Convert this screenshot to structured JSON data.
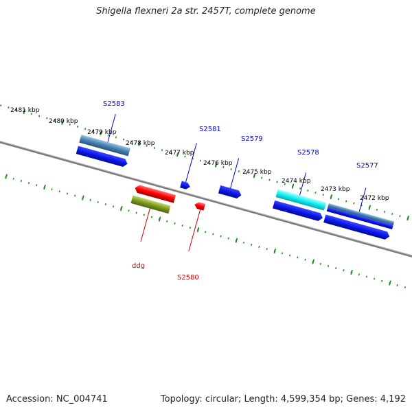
{
  "title": "Shigella flexneri 2a str. 2457T, complete genome",
  "footer": {
    "accession": "Accession: NC_004741",
    "stats": "Topology: circular; Length: 4,599,354 bp; Genes: 4,192"
  },
  "colors": {
    "backbone": "#7a7a7a",
    "ruler": "#1a8a1a",
    "forward_gene": "#0a14e6",
    "reverse_gene": "#ff0000",
    "reverse_gene_alt": "#7a9a1e",
    "cds_steelblue": "#4682b4",
    "cds_cyan": "#10f0f0",
    "label_forward": "#0000cc",
    "label_reverse": "#cc0000"
  },
  "ruler_ticks": [
    "2481 kbp",
    "2480 kbp",
    "2479 kbp",
    "2478 kbp",
    "2477 kbp",
    "2476 kbp",
    "2475 kbp",
    "2474 kbp",
    "2473 kbp",
    "2472 kbp"
  ],
  "gene_labels": [
    {
      "id": "S2583",
      "strand": "forward"
    },
    {
      "id": "S2581",
      "strand": "forward"
    },
    {
      "id": "S2579",
      "strand": "forward"
    },
    {
      "id": "S2578",
      "strand": "forward"
    },
    {
      "id": "S2577",
      "strand": "forward"
    },
    {
      "id": "ddg",
      "strand": "reverse"
    },
    {
      "id": "S2580",
      "strand": "reverse"
    }
  ]
}
